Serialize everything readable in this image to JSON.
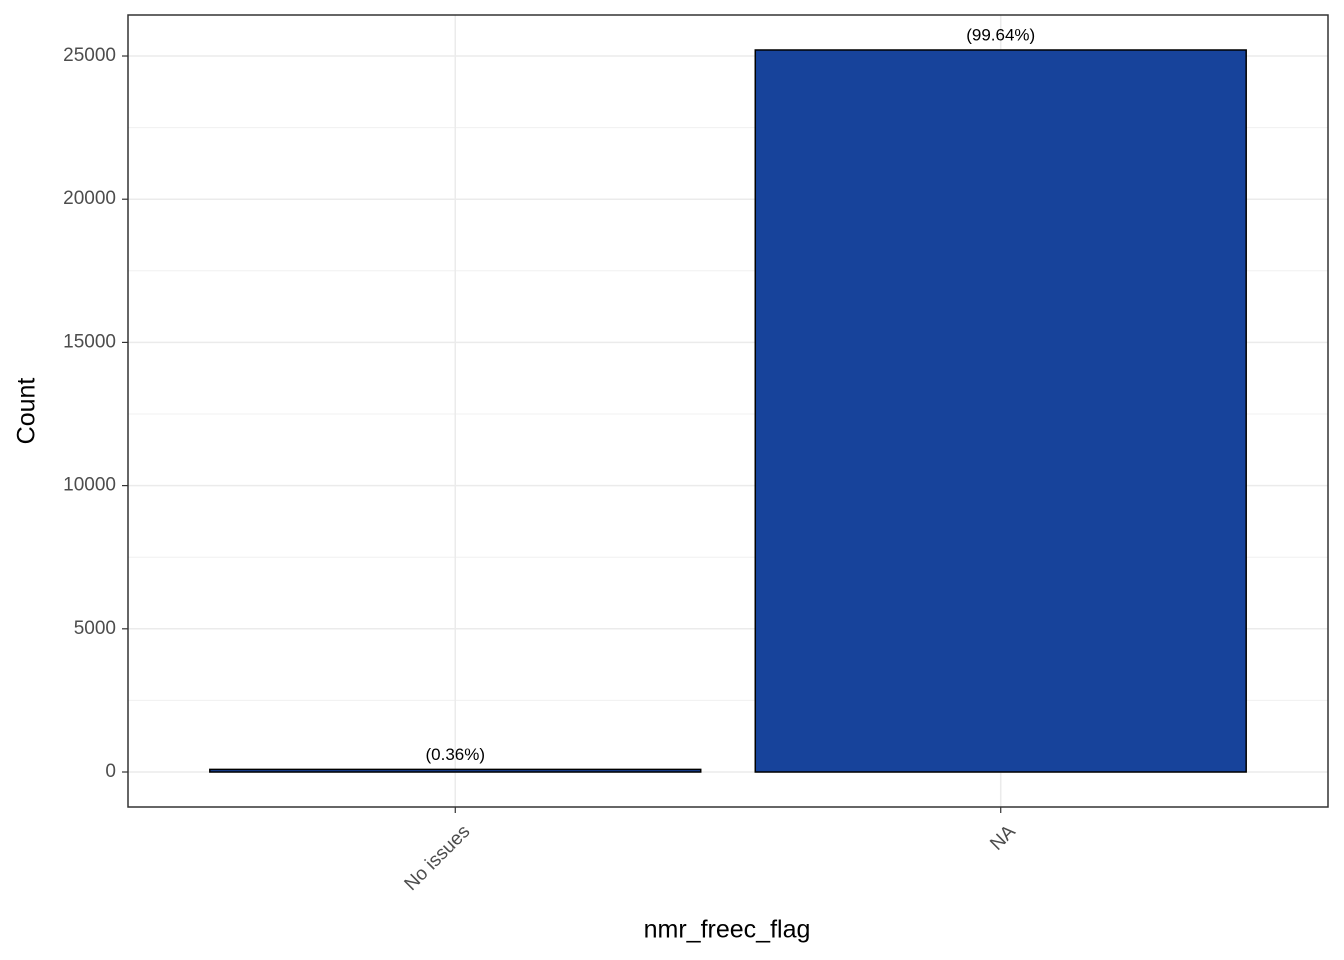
{
  "chart_data": {
    "type": "bar",
    "x_label": "nmr_freec_flag",
    "y_label": "Count",
    "categories": [
      "No issues",
      "NA"
    ],
    "values": [
      91,
      25210
    ],
    "annotations": [
      "(0.36%)",
      "(99.64%)"
    ],
    "color": "#17439b",
    "ylim": [
      -1222,
      26432
    ],
    "yticks": [
      0,
      5000,
      10000,
      15000,
      20000,
      25000
    ],
    "y_minor_ticks": [
      2500,
      7500,
      12500,
      17500,
      22500
    ],
    "grid": true
  }
}
